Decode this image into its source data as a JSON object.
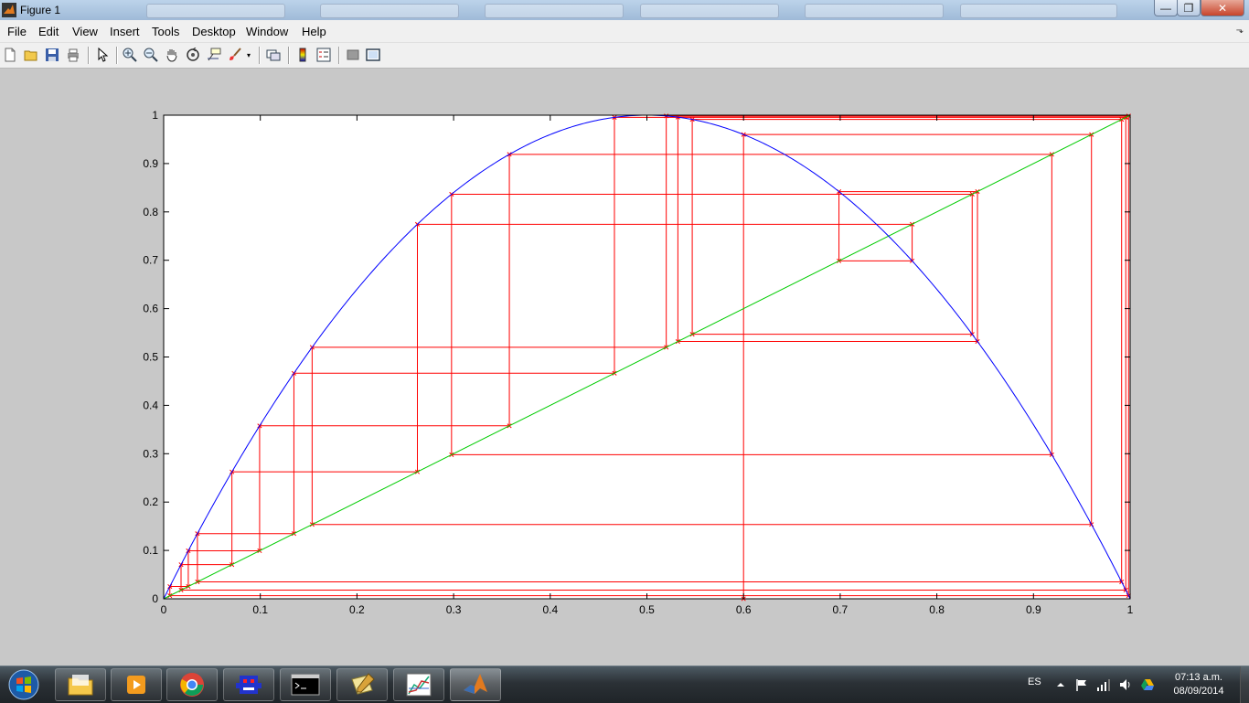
{
  "window": {
    "title": "Figure 1",
    "close_label": "✕",
    "max_label": "❐",
    "min_label": "—"
  },
  "menu": [
    "File",
    "Edit",
    "View",
    "Insert",
    "Tools",
    "Desktop",
    "Window",
    "Help"
  ],
  "toolbar_icons": [
    "new-figure-icon",
    "open-file-icon",
    "save-icon",
    "print-icon",
    "edit-plot-arrow-icon",
    "zoom-in-icon",
    "zoom-out-icon",
    "pan-hand-icon",
    "rotate-3d-icon",
    "data-cursor-icon",
    "brush-icon",
    "link-plot-icon",
    "insert-colorbar-icon",
    "insert-legend-icon",
    "hide-plot-tools-icon",
    "show-plot-tools-icon"
  ],
  "colors": {
    "curve": "#0000ff",
    "diagonal": "#00cc00",
    "cobweb": "#ff0000",
    "axes_bg": "#ffffff",
    "figure_bg": "#c8c8c8"
  },
  "chart_data": {
    "type": "line",
    "title": "",
    "xlabel": "",
    "ylabel": "",
    "xlim": [
      0,
      1
    ],
    "ylim": [
      0,
      1
    ],
    "xticks": [
      "0",
      "0.1",
      "0.2",
      "0.3",
      "0.4",
      "0.5",
      "0.6",
      "0.7",
      "0.8",
      "0.9",
      "1"
    ],
    "yticks": [
      "0",
      "0.1",
      "0.2",
      "0.3",
      "0.4",
      "0.5",
      "0.6",
      "0.7",
      "0.8",
      "0.9",
      "1"
    ],
    "grid": false,
    "series": [
      {
        "kind": "curve",
        "function": "y = 4x(1-x)",
        "r": 4,
        "color": "#0000ff"
      },
      {
        "kind": "diagonal",
        "x": [
          0,
          1
        ],
        "y": [
          0,
          1
        ],
        "color": "#00cc00"
      },
      {
        "kind": "cobweb",
        "x0": 0.6,
        "iterations": 25,
        "marker": "x",
        "color": "#ff0000"
      }
    ]
  },
  "taskbar": {
    "apps": [
      "explorer-icon",
      "media-player-icon",
      "chrome-icon",
      "game-icon",
      "cmd-icon",
      "notepad-icon",
      "plot-icon",
      "matlab-icon"
    ],
    "language": "ES",
    "time": "07:13 a.m.",
    "date": "08/09/2014"
  }
}
